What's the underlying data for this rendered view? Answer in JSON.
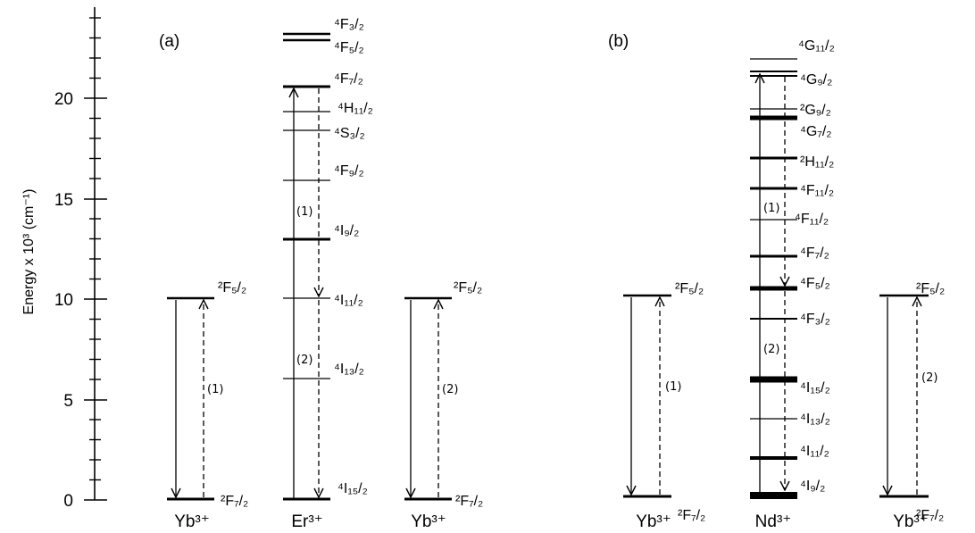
{
  "axis": {
    "title": "Energy x 10³ (cm⁻¹)",
    "ticks": [
      "0",
      "5",
      "10",
      "15",
      "20"
    ]
  },
  "panel_a": {
    "label": "(a)",
    "yb_left": {
      "ion": "Yb³⁺",
      "upper": "²F₅/₂",
      "lower": "²F₇/₂",
      "step": "(1)"
    },
    "er": {
      "ion": "Er³⁺",
      "levels": [
        "⁴F₃/₂",
        "⁴F₅/₂",
        "⁴F₇/₂",
        "⁴H₁₁/₂",
        "⁴S₃/₂",
        "⁴F₉/₂",
        "⁴I₉/₂",
        "⁴I₁₁/₂",
        "⁴I₁₃/₂",
        "⁴I₁₅/₂"
      ],
      "step1": "(1)",
      "step2": "(2)"
    },
    "yb_right": {
      "ion": "Yb³⁺",
      "upper": "²F₅/₂",
      "lower": "²F₇/₂",
      "step": "(2)"
    }
  },
  "panel_b": {
    "label": "(b)",
    "yb_left": {
      "ion": "Yb³⁺",
      "upper": "²F₅/₂",
      "lower": "²F₇/₂",
      "step": "(1)"
    },
    "nd": {
      "ion": "Nd³⁺",
      "levels": [
        "⁴G₁₁/₂",
        "⁴G₉/₂",
        "²G₉/₂",
        "⁴G₇/₂",
        "²H₁₁/₂",
        "⁴F₁₁/₂",
        "⁴F₁₁/₂",
        "⁴F₇/₂",
        "⁴F₅/₂",
        "⁴F₃/₂",
        "⁴I₁₅/₂",
        "⁴I₁₃/₂",
        "⁴I₁₁/₂",
        "⁴I₉/₂"
      ],
      "step1": "(1)",
      "step2": "(2)"
    },
    "yb_right": {
      "ion": "Yb³⁺",
      "upper": "²F₅/₂",
      "lower": "²F₇/₂",
      "step": "(2)"
    }
  }
}
